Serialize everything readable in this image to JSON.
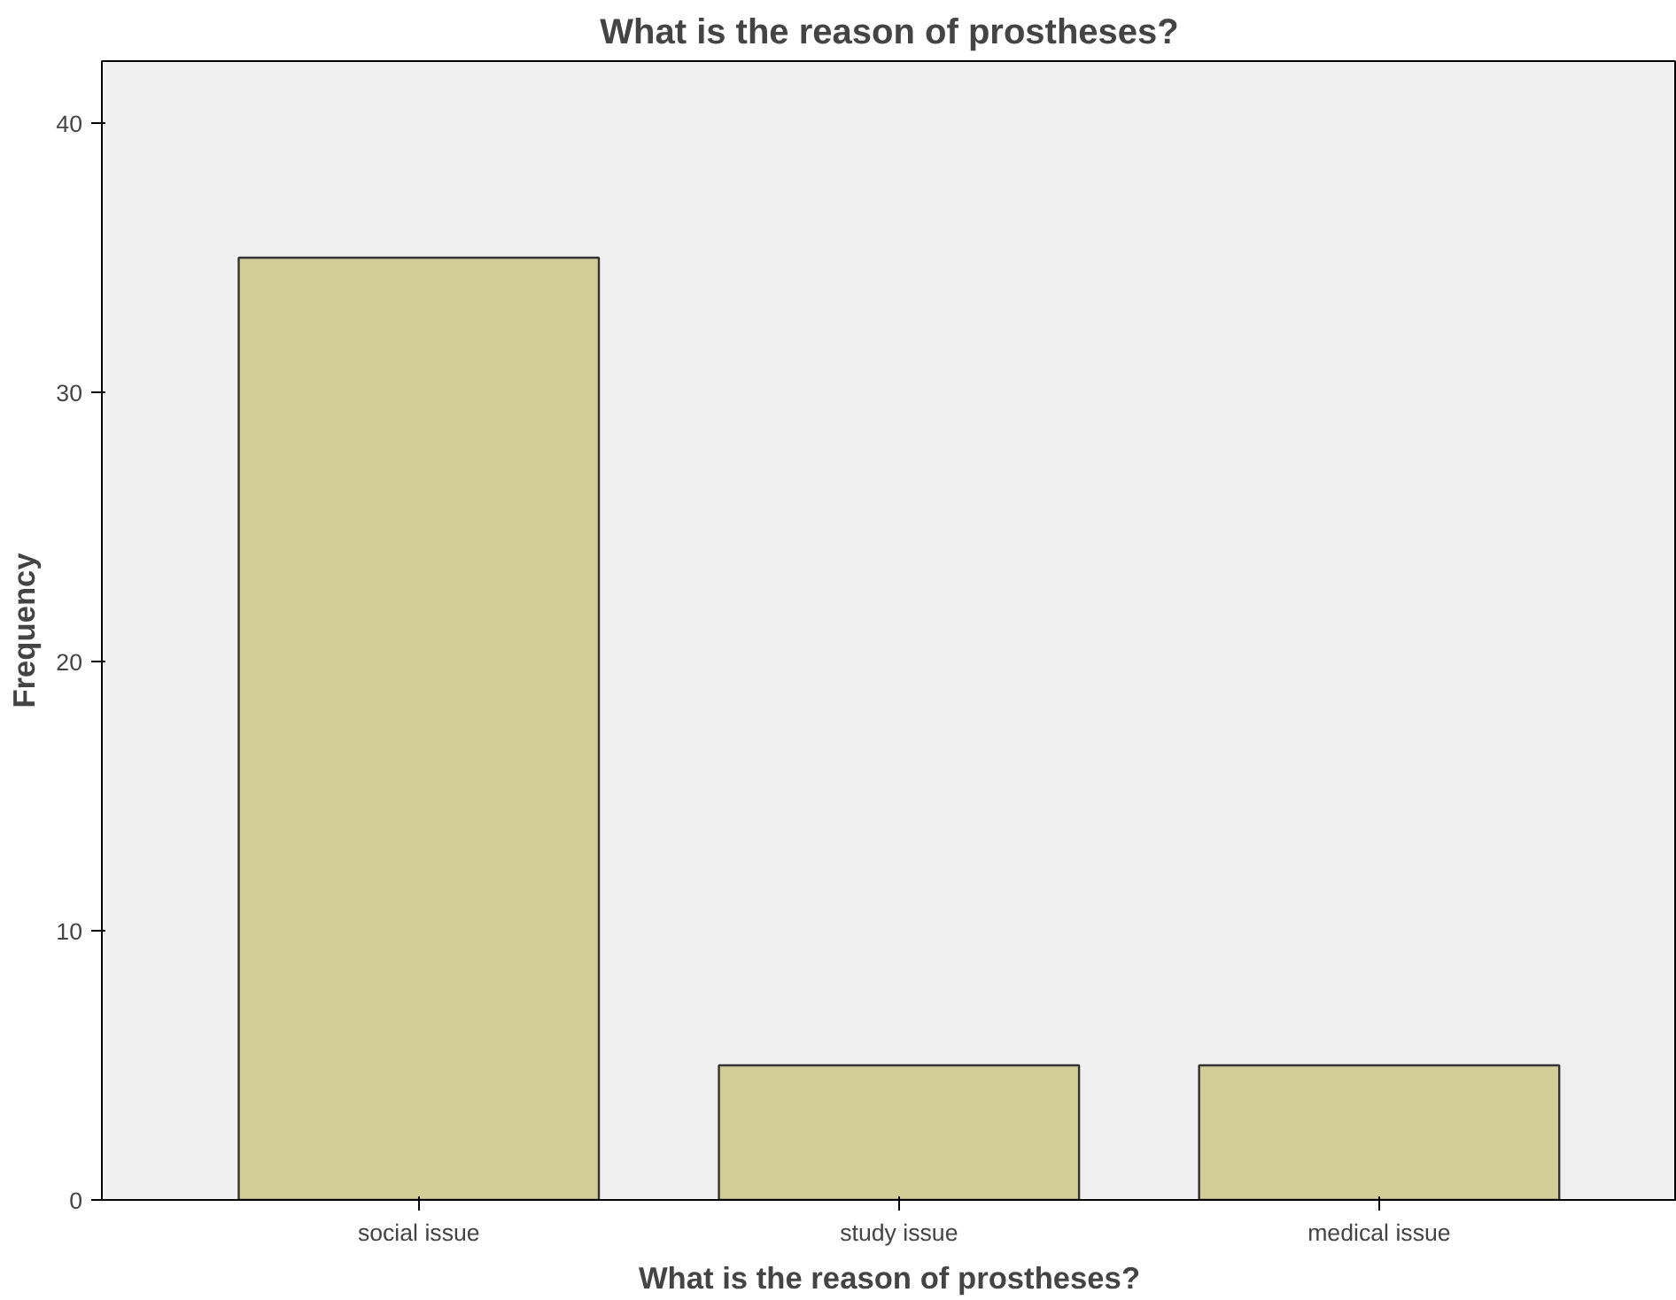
{
  "chart_data": {
    "type": "bar",
    "title": "What is the reason of prostheses?",
    "xlabel": "What is the reason of prostheses?",
    "ylabel": "Frequency",
    "categories": [
      "social issue",
      "study issue",
      "medical issue"
    ],
    "values": [
      35,
      5,
      5
    ],
    "color": "#d3ce97",
    "ylim": [
      0,
      42.3
    ],
    "yticks": [
      0,
      10,
      20,
      30,
      40
    ],
    "grid": false,
    "legend": false
  }
}
